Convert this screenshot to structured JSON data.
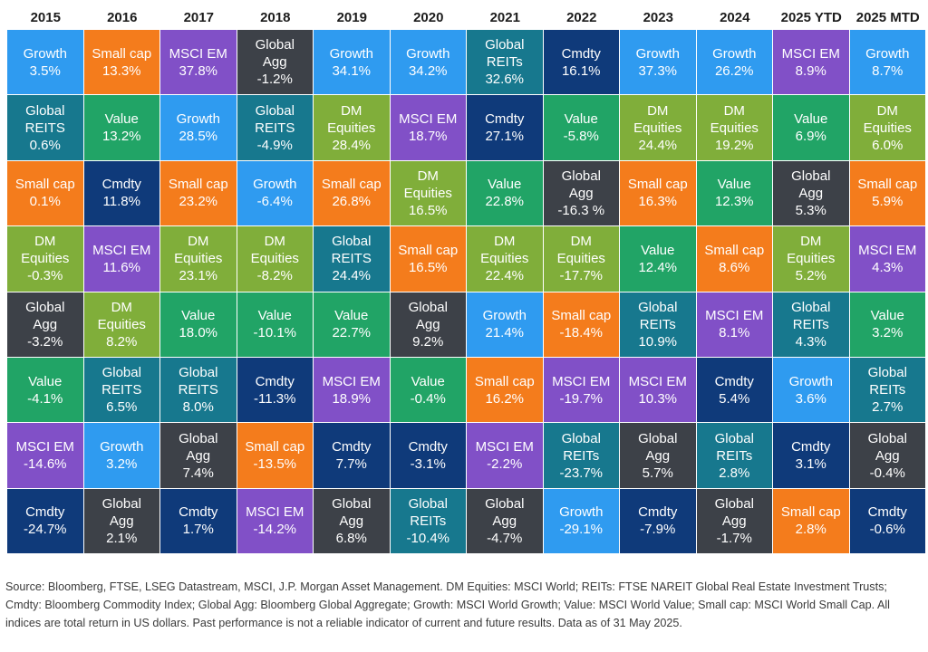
{
  "chart_data": {
    "type": "table",
    "title": "",
    "years": [
      "2015",
      "2016",
      "2017",
      "2018",
      "2019",
      "2020",
      "2021",
      "2022",
      "2023",
      "2024",
      "2025 YTD",
      "2025 MTD"
    ],
    "asset_colors": {
      "Growth": "#2f9bf0",
      "Small cap": "#f47c1c",
      "MSCI EM": "#8150c7",
      "Global Agg": "#3d4148",
      "Global REITs": "#17788e",
      "Cmdty": "#0f3a7a",
      "Value": "#21a466",
      "DM Equities": "#80ae3a"
    },
    "columns": [
      [
        {
          "asset": "Growth",
          "label": "Growth",
          "value": "3.5%"
        },
        {
          "asset": "Global REITs",
          "label": "Global\nREITS",
          "value": "0.6%"
        },
        {
          "asset": "Small cap",
          "label": "Small cap",
          "value": "0.1%"
        },
        {
          "asset": "DM Equities",
          "label": "DM\nEquities",
          "value": "-0.3%"
        },
        {
          "asset": "Global Agg",
          "label": "Global\nAgg",
          "value": "-3.2%"
        },
        {
          "asset": "Value",
          "label": "Value",
          "value": "-4.1%"
        },
        {
          "asset": "MSCI EM",
          "label": "MSCI EM",
          "value": "-14.6%"
        },
        {
          "asset": "Cmdty",
          "label": "Cmdty",
          "value": "-24.7%"
        }
      ],
      [
        {
          "asset": "Small cap",
          "label": "Small cap",
          "value": "13.3%"
        },
        {
          "asset": "Value",
          "label": "Value",
          "value": "13.2%"
        },
        {
          "asset": "Cmdty",
          "label": "Cmdty",
          "value": "11.8%"
        },
        {
          "asset": "MSCI EM",
          "label": "MSCI EM",
          "value": "11.6%"
        },
        {
          "asset": "DM Equities",
          "label": "DM\nEquities",
          "value": "8.2%"
        },
        {
          "asset": "Global REITs",
          "label": "Global\nREITS",
          "value": "6.5%"
        },
        {
          "asset": "Growth",
          "label": "Growth",
          "value": "3.2%"
        },
        {
          "asset": "Global Agg",
          "label": "Global\nAgg",
          "value": "2.1%"
        }
      ],
      [
        {
          "asset": "MSCI EM",
          "label": "MSCI EM",
          "value": "37.8%"
        },
        {
          "asset": "Growth",
          "label": "Growth",
          "value": "28.5%"
        },
        {
          "asset": "Small cap",
          "label": "Small cap",
          "value": "23.2%"
        },
        {
          "asset": "DM Equities",
          "label": "DM\nEquities",
          "value": "23.1%"
        },
        {
          "asset": "Value",
          "label": "Value",
          "value": "18.0%"
        },
        {
          "asset": "Global REITs",
          "label": "Global\nREITS",
          "value": "8.0%"
        },
        {
          "asset": "Global Agg",
          "label": "Global\nAgg",
          "value": "7.4%"
        },
        {
          "asset": "Cmdty",
          "label": "Cmdty",
          "value": "1.7%"
        }
      ],
      [
        {
          "asset": "Global Agg",
          "label": "Global\nAgg",
          "value": "-1.2%"
        },
        {
          "asset": "Global REITs",
          "label": "Global\nREITS",
          "value": "-4.9%"
        },
        {
          "asset": "Growth",
          "label": "Growth",
          "value": "-6.4%"
        },
        {
          "asset": "DM Equities",
          "label": "DM\nEquities",
          "value": "-8.2%"
        },
        {
          "asset": "Value",
          "label": "Value",
          "value": "-10.1%"
        },
        {
          "asset": "Cmdty",
          "label": "Cmdty",
          "value": "-11.3%"
        },
        {
          "asset": "Small cap",
          "label": "Small cap",
          "value": "-13.5%"
        },
        {
          "asset": "MSCI EM",
          "label": "MSCI EM",
          "value": "-14.2%"
        }
      ],
      [
        {
          "asset": "Growth",
          "label": "Growth",
          "value": "34.1%"
        },
        {
          "asset": "DM Equities",
          "label": "DM\nEquities",
          "value": "28.4%"
        },
        {
          "asset": "Small cap",
          "label": "Small cap",
          "value": "26.8%"
        },
        {
          "asset": "Global REITs",
          "label": "Global\nREITS",
          "value": "24.4%"
        },
        {
          "asset": "Value",
          "label": "Value",
          "value": "22.7%"
        },
        {
          "asset": "MSCI EM",
          "label": "MSCI EM",
          "value": "18.9%"
        },
        {
          "asset": "Cmdty",
          "label": "Cmdty",
          "value": "7.7%"
        },
        {
          "asset": "Global Agg",
          "label": "Global\nAgg",
          "value": "6.8%"
        }
      ],
      [
        {
          "asset": "Growth",
          "label": "Growth",
          "value": "34.2%"
        },
        {
          "asset": "MSCI EM",
          "label": "MSCI EM",
          "value": "18.7%"
        },
        {
          "asset": "DM Equities",
          "label": "DM\nEquities",
          "value": "16.5%"
        },
        {
          "asset": "Small cap",
          "label": "Small cap",
          "value": "16.5%"
        },
        {
          "asset": "Global Agg",
          "label": "Global\nAgg",
          "value": "9.2%"
        },
        {
          "asset": "Value",
          "label": "Value",
          "value": "-0.4%"
        },
        {
          "asset": "Cmdty",
          "label": "Cmdty",
          "value": "-3.1%"
        },
        {
          "asset": "Global REITs",
          "label": "Global\nREITs",
          "value": "-10.4%"
        }
      ],
      [
        {
          "asset": "Global REITs",
          "label": "Global\nREITs",
          "value": "32.6%"
        },
        {
          "asset": "Cmdty",
          "label": "Cmdty",
          "value": "27.1%"
        },
        {
          "asset": "Value",
          "label": "Value",
          "value": "22.8%"
        },
        {
          "asset": "DM Equities",
          "label": "DM\nEquities",
          "value": "22.4%"
        },
        {
          "asset": "Growth",
          "label": "Growth",
          "value": "21.4%"
        },
        {
          "asset": "Small cap",
          "label": "Small cap",
          "value": "16.2%"
        },
        {
          "asset": "MSCI EM",
          "label": "MSCI EM",
          "value": "-2.2%"
        },
        {
          "asset": "Global Agg",
          "label": "Global\nAgg",
          "value": "-4.7%"
        }
      ],
      [
        {
          "asset": "Cmdty",
          "label": "Cmdty",
          "value": "16.1%"
        },
        {
          "asset": "Value",
          "label": "Value",
          "value": "-5.8%"
        },
        {
          "asset": "Global Agg",
          "label": "Global\nAgg",
          "value": "-16.3 %"
        },
        {
          "asset": "DM Equities",
          "label": "DM\nEquities",
          "value": "-17.7%"
        },
        {
          "asset": "Small cap",
          "label": "Small cap",
          "value": "-18.4%"
        },
        {
          "asset": "MSCI EM",
          "label": "MSCI EM",
          "value": "-19.7%"
        },
        {
          "asset": "Global REITs",
          "label": "Global\nREITs",
          "value": "-23.7%"
        },
        {
          "asset": "Growth",
          "label": "Growth",
          "value": "-29.1%"
        }
      ],
      [
        {
          "asset": "Growth",
          "label": "Growth",
          "value": "37.3%"
        },
        {
          "asset": "DM Equities",
          "label": "DM\nEquities",
          "value": "24.4%"
        },
        {
          "asset": "Small cap",
          "label": "Small cap",
          "value": "16.3%"
        },
        {
          "asset": "Value",
          "label": "Value",
          "value": "12.4%"
        },
        {
          "asset": "Global REITs",
          "label": "Global\nREITs",
          "value": "10.9%"
        },
        {
          "asset": "MSCI EM",
          "label": "MSCI EM",
          "value": "10.3%"
        },
        {
          "asset": "Global Agg",
          "label": "Global\nAgg",
          "value": "5.7%"
        },
        {
          "asset": "Cmdty",
          "label": "Cmdty",
          "value": "-7.9%"
        }
      ],
      [
        {
          "asset": "Growth",
          "label": "Growth",
          "value": "26.2%"
        },
        {
          "asset": "DM Equities",
          "label": "DM\nEquities",
          "value": "19.2%"
        },
        {
          "asset": "Value",
          "label": "Value",
          "value": "12.3%"
        },
        {
          "asset": "Small cap",
          "label": "Small cap",
          "value": "8.6%"
        },
        {
          "asset": "MSCI EM",
          "label": "MSCI EM",
          "value": "8.1%"
        },
        {
          "asset": "Cmdty",
          "label": "Cmdty",
          "value": "5.4%"
        },
        {
          "asset": "Global REITs",
          "label": "Global\nREITs",
          "value": "2.8%"
        },
        {
          "asset": "Global Agg",
          "label": "Global\nAgg",
          "value": "-1.7%"
        }
      ],
      [
        {
          "asset": "MSCI EM",
          "label": "MSCI EM",
          "value": "8.9%"
        },
        {
          "asset": "Value",
          "label": "Value",
          "value": "6.9%"
        },
        {
          "asset": "Global Agg",
          "label": "Global\nAgg",
          "value": "5.3%"
        },
        {
          "asset": "DM Equities",
          "label": "DM\nEquities",
          "value": "5.2%"
        },
        {
          "asset": "Global REITs",
          "label": "Global\nREITs",
          "value": "4.3%"
        },
        {
          "asset": "Growth",
          "label": "Growth",
          "value": "3.6%"
        },
        {
          "asset": "Cmdty",
          "label": "Cmdty",
          "value": "3.1%"
        },
        {
          "asset": "Small cap",
          "label": "Small cap",
          "value": "2.8%"
        }
      ],
      [
        {
          "asset": "Growth",
          "label": "Growth",
          "value": "8.7%"
        },
        {
          "asset": "DM Equities",
          "label": "DM\nEquities",
          "value": "6.0%"
        },
        {
          "asset": "Small cap",
          "label": "Small cap",
          "value": "5.9%"
        },
        {
          "asset": "MSCI EM",
          "label": "MSCI EM",
          "value": "4.3%"
        },
        {
          "asset": "Value",
          "label": "Value",
          "value": "3.2%"
        },
        {
          "asset": "Global REITs",
          "label": "Global\nREITs",
          "value": "2.7%"
        },
        {
          "asset": "Global Agg",
          "label": "Global\nAgg",
          "value": "-0.4%"
        },
        {
          "asset": "Cmdty",
          "label": "Cmdty",
          "value": "-0.6%"
        }
      ]
    ]
  },
  "footnote": "Source: Bloomberg, FTSE, LSEG Datastream, MSCI, J.P. Morgan Asset Management. DM Equities: MSCI World; REITs: FTSE NAREIT Global Real Estate Investment Trusts; Cmdty: Bloomberg Commodity Index; Global Agg: Bloomberg Global Aggregate; Growth: MSCI World Growth; Value: MSCI World Value; Small cap: MSCI World Small Cap. All indices are total return in US dollars. Past performance is not a reliable indicator of current and future results. Data as of 31 May 2025."
}
